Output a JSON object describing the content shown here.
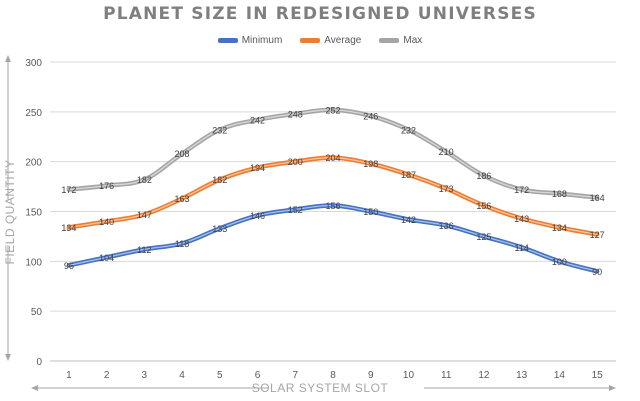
{
  "chart_data": {
    "type": "line",
    "title": "PLANET SIZE IN REDESIGNED UNIVERSES",
    "xlabel": "SOLAR SYSTEM SLOT",
    "ylabel": "FIELD QUANTITY",
    "categories": [
      "1",
      "2",
      "3",
      "4",
      "5",
      "6",
      "7",
      "8",
      "9",
      "10",
      "11",
      "12",
      "13",
      "14",
      "15"
    ],
    "ylim": [
      0,
      300
    ],
    "yticks": [
      "0",
      "50",
      "100",
      "150",
      "200",
      "250",
      "300"
    ],
    "grid": true,
    "legend_position": "top",
    "series": [
      {
        "name": "Minimum",
        "color": "#4472c4",
        "values": [
          96,
          104,
          112,
          118,
          133,
          146,
          152,
          156,
          150,
          142,
          136,
          125,
          114,
          100,
          90
        ]
      },
      {
        "name": "Average",
        "color": "#ed7d31",
        "values": [
          134,
          140,
          147,
          163,
          182,
          194,
          200,
          204,
          198,
          187,
          173,
          156,
          143,
          134,
          127
        ]
      },
      {
        "name": "Max",
        "color": "#a5a5a5",
        "values": [
          172,
          176,
          182,
          208,
          232,
          242,
          248,
          252,
          246,
          232,
          210,
          186,
          172,
          168,
          164
        ]
      }
    ]
  }
}
